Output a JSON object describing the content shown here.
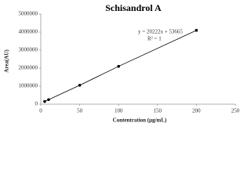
{
  "chart_data": {
    "type": "scatter",
    "title": "Schisandrol A",
    "x_label": "Contentration (μg/mL)",
    "y_label": "Area(AU)",
    "annotations": [
      "y = 20222x + 53665",
      "R² = 1"
    ],
    "series": [
      {
        "name": "Schisandrol A",
        "color": "#000000",
        "x": [
          5,
          10,
          50,
          100,
          200
        ],
        "values": [
          150000,
          250000,
          1050000,
          2100000,
          4100000
        ]
      }
    ],
    "trendline": true,
    "xlim": [
      0,
      250
    ],
    "xticks": [
      0,
      50,
      100,
      150,
      200,
      250
    ],
    "ylim": [
      0,
      5000000
    ],
    "yticks": [
      0,
      1000000,
      2000000,
      3000000,
      4000000,
      5000000
    ],
    "grid": false
  }
}
